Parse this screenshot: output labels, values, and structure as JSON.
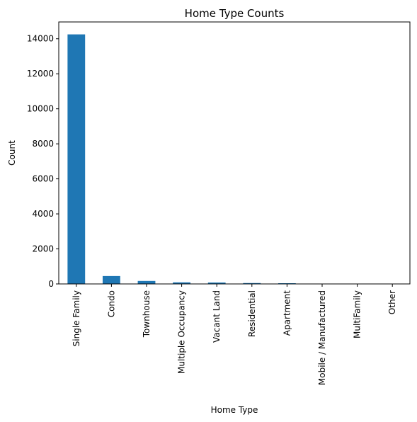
{
  "chart_data": {
    "type": "bar",
    "title": "Home Type Counts",
    "xlabel": "Home Type",
    "ylabel": "Count",
    "categories": [
      "Single Family",
      "Condo",
      "Townhouse",
      "Multiple Occupancy",
      "Vacant Land",
      "Residential",
      "Apartment",
      "Mobile / Manufactured",
      "MultiFamily",
      "Other"
    ],
    "values": [
      14250,
      450,
      170,
      90,
      80,
      50,
      40,
      10,
      5,
      3
    ],
    "ylim": [
      0,
      14960
    ],
    "yticks": [
      0,
      2000,
      4000,
      6000,
      8000,
      10000,
      12000,
      14000
    ],
    "grid": false,
    "legend": "none",
    "bar_color": "#1f77b4"
  }
}
